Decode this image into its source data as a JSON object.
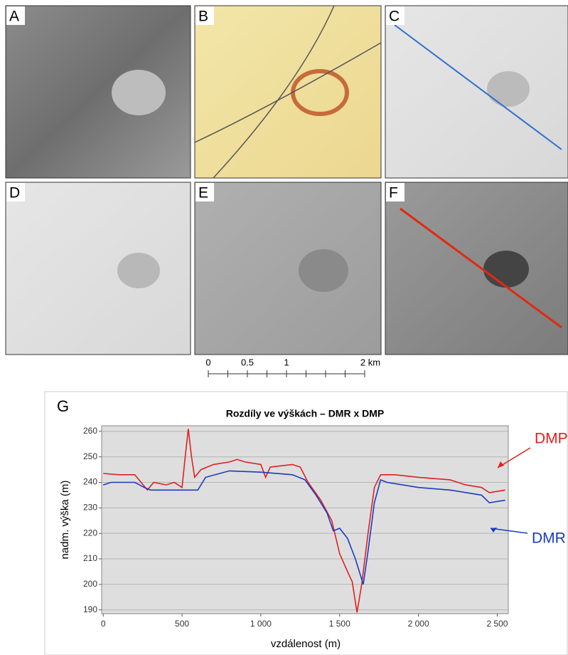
{
  "panels": [
    "A",
    "B",
    "C",
    "D",
    "E",
    "F"
  ],
  "scale_bar": {
    "labels": [
      "0",
      "0.5",
      "1",
      "2 km"
    ]
  },
  "chart_data": {
    "type": "line",
    "panel_label": "G",
    "title": "Rozdíly ve výškách – DMR x DMP",
    "x_label": "vzdálenost (m)",
    "y_label": "nadm. výška (m)",
    "xlim": [
      -10,
      2570
    ],
    "ylim": [
      188.5,
      262.2
    ],
    "xticks": [
      0,
      500,
      {
        "value": 1000,
        "label": "1 000"
      },
      {
        "value": 1500,
        "label": "1 500"
      },
      {
        "value": 2000,
        "label": "2 000"
      },
      {
        "value": 2500,
        "label": "2 500"
      }
    ],
    "yticks": [
      190,
      200,
      210,
      220,
      230,
      240,
      250,
      260
    ],
    "grid": true,
    "series": [
      {
        "name": "DMP",
        "color": "#e02020",
        "x": [
          0,
          100,
          200,
          280,
          320,
          400,
          450,
          500,
          520,
          540,
          560,
          580,
          620,
          700,
          800,
          850,
          900,
          1000,
          1030,
          1060,
          1200,
          1250,
          1300,
          1380,
          1450,
          1500,
          1550,
          1580,
          1610,
          1640,
          1680,
          1720,
          1760,
          1850,
          2000,
          2200,
          2300,
          2400,
          2450,
          2550
        ],
        "values": [
          243.5,
          243,
          243,
          237,
          240,
          239,
          240,
          238,
          250,
          261,
          250,
          242,
          245,
          247,
          248,
          249,
          248,
          247,
          242,
          246,
          247,
          246,
          240,
          233,
          225,
          212,
          205,
          201,
          189,
          200,
          220,
          238,
          243,
          243,
          242,
          241,
          239,
          238,
          236,
          237
        ]
      },
      {
        "name": "DMR",
        "color": "#1a3cc0",
        "x": [
          0,
          50,
          200,
          260,
          300,
          500,
          600,
          650,
          800,
          1000,
          1200,
          1280,
          1350,
          1420,
          1460,
          1500,
          1550,
          1600,
          1650,
          1680,
          1720,
          1760,
          1800,
          2000,
          2200,
          2400,
          2450,
          2550
        ],
        "values": [
          239,
          240,
          240,
          238,
          237,
          237,
          237,
          242,
          244.5,
          244,
          243,
          241,
          235,
          228,
          221,
          222,
          218,
          210,
          200,
          213,
          232,
          241,
          240,
          238,
          237,
          235,
          232,
          233
        ]
      }
    ]
  }
}
